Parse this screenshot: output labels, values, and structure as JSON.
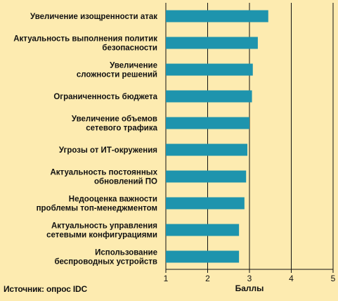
{
  "chart_data": {
    "type": "bar",
    "orientation": "horizontal",
    "categories": [
      [
        "Увеличение изощренности атак"
      ],
      [
        "Актуальность выполнения политик",
        "безопасности"
      ],
      [
        "Увеличение",
        "сложности решений"
      ],
      [
        "Ограниченность бюджета"
      ],
      [
        "Увеличение объемов",
        "сетевого трафика"
      ],
      [
        "Угрозы от ИТ-окружения"
      ],
      [
        "Актуальность постоянных",
        "обновлений ПО"
      ],
      [
        "Недооценка важности",
        "проблемы топ-менеджментом"
      ],
      [
        "Актуальность управления",
        "сетевыми конфигурациями"
      ],
      [
        "Использование",
        "беспроводных устройств"
      ]
    ],
    "values": [
      3.45,
      3.2,
      3.08,
      3.06,
      3.0,
      2.95,
      2.92,
      2.88,
      2.75,
      2.75
    ],
    "xlabel": "Баллы",
    "xlim": [
      1,
      5
    ],
    "xticks": [
      1,
      2,
      3,
      4,
      5
    ],
    "grid": "vertical lines at each tick",
    "legend": "none"
  },
  "source": "Источник: опрос IDC",
  "colors": {
    "background": "#fdebb0",
    "bar": "#1e94ad",
    "axis": "#111111"
  }
}
